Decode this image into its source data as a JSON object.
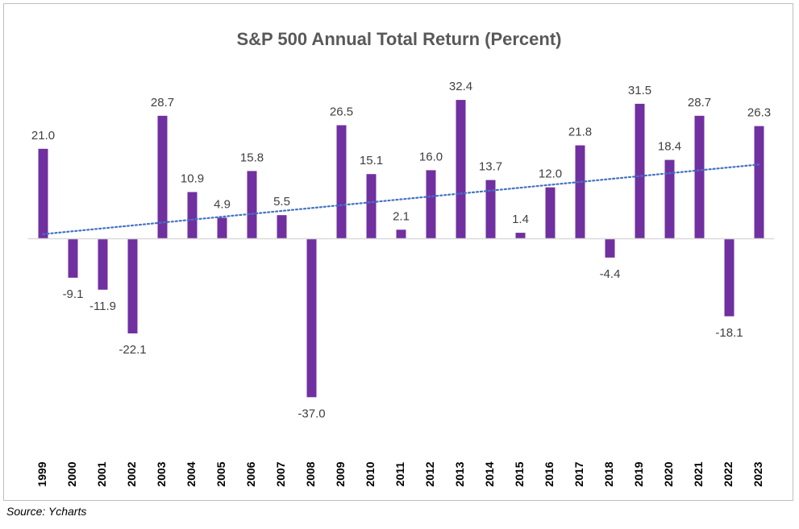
{
  "chart_data": {
    "type": "bar",
    "title": "S&P 500 Annual Total Return (Percent)",
    "xlabel": "",
    "ylabel": "",
    "categories": [
      "1999",
      "2000",
      "2001",
      "2002",
      "2003",
      "2004",
      "2005",
      "2006",
      "2007",
      "2008",
      "2009",
      "2010",
      "2011",
      "2012",
      "2013",
      "2014",
      "2015",
      "2016",
      "2017",
      "2018",
      "2019",
      "2020",
      "2021",
      "2022",
      "2023"
    ],
    "values": [
      21.0,
      -9.1,
      -11.9,
      -22.1,
      28.7,
      10.9,
      4.9,
      15.8,
      5.5,
      -37.0,
      26.5,
      15.1,
      2.1,
      16.0,
      32.4,
      13.7,
      1.4,
      12.0,
      21.8,
      -4.4,
      31.5,
      18.4,
      28.7,
      -18.1,
      26.3
    ],
    "data_labels": [
      "21.0",
      "-9.1",
      "-11.9",
      "-22.1",
      "28.7",
      "10.9",
      "4.9",
      "15.8",
      "5.5",
      "-37.0",
      "26.5",
      "15.1",
      "2.1",
      "16.0",
      "32.4",
      "13.7",
      "1.4",
      "12.0",
      "21.8",
      "-4.4",
      "31.5",
      "18.4",
      "28.7",
      "-18.1",
      "26.3"
    ],
    "trendline": {
      "type": "linear",
      "style": "dotted"
    },
    "ylim": [
      -40,
      35
    ],
    "grid": false,
    "legend": "none",
    "colors": {
      "bar": "#7030a0",
      "trendline": "#4472c4",
      "axis": "#d9d9d9"
    }
  },
  "source": "Source: Ycharts"
}
